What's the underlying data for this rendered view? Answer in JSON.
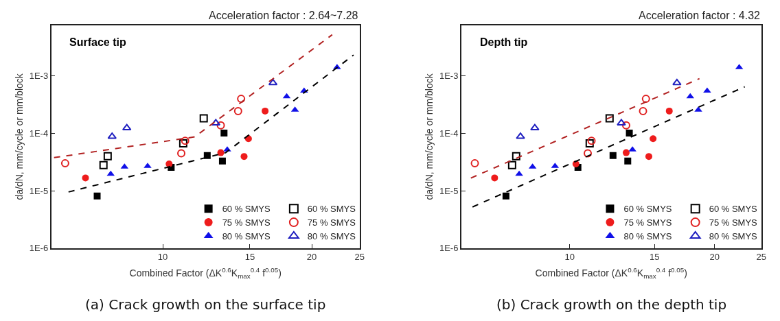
{
  "chart_data": [
    {
      "type": "scatter",
      "title": "Surface tip",
      "subtitle": "Acceleration factor : 2.64~7.28",
      "xlabel": "Combined Factor (ΔK$^{0.6}$K$_{max}$$^{0.4}$ f$^{0.05}$)",
      "ylabel": "da/dN, mm/cycle or mm/block",
      "annotations": [
        "(a) Crack growth on the surface tip"
      ],
      "log": "xy",
      "legend": "bottom right",
      "xlim": [
        5.95,
        25
      ],
      "ylim": [
        1e-06,
        0.0076
      ],
      "xticks": [
        10,
        15,
        20,
        25
      ],
      "yticks": [
        {
          "value": 1e-06,
          "label": "1E-6"
        },
        {
          "value": 1e-05,
          "label": "1E-5"
        },
        {
          "value": 0.0001,
          "label": "1E-4"
        },
        {
          "value": 0.001,
          "label": "1E-3"
        }
      ],
      "series": [
        {
          "name": "60 % SMYS",
          "color": "#000000",
          "marker": "square",
          "x": [
            7.37,
            10.4,
            12.3,
            13.2,
            13.3
          ],
          "values": [
            8.05e-06,
            2.56e-05,
            4.1e-05,
            3.3e-05,
            0.000101
          ]
        },
        {
          "name": "75 % SMYS",
          "color": "#ee1c1c",
          "marker": "circle",
          "x": [
            6.98,
            10.3,
            13.1,
            14.6,
            14.9,
            16.1
          ],
          "values": [
            1.67e-05,
            2.93e-05,
            4.6e-05,
            3.95e-05,
            8.05e-05,
            0.000245
          ]
        },
        {
          "name": "80 % SMYS",
          "color": "#1010e8",
          "marker": "triangle",
          "x": [
            7.85,
            8.37,
            9.32,
            13.5,
            17.8,
            18.5,
            19.3,
            22.5
          ],
          "values": [
            1.95e-05,
            2.6e-05,
            2.67e-05,
            5.2e-05,
            0.00044,
            0.000256,
            0.00055,
            0.00142
          ]
        },
        {
          "name": "60 % SMYS",
          "color": "#000000",
          "marker": "square-open",
          "x": [
            7.59,
            7.74,
            11.0,
            12.1
          ],
          "values": [
            2.8e-05,
            4e-05,
            6.7e-05,
            0.000183
          ]
        },
        {
          "name": "75 % SMYS",
          "color": "#e02020",
          "marker": "circle-open",
          "x": [
            6.35,
            10.9,
            11.1,
            13.1,
            14.2,
            14.4
          ],
          "values": [
            3e-05,
            4.5e-05,
            7.4e-05,
            0.000138,
            0.000245,
            0.0004
          ]
        },
        {
          "name": "80 % SMYS",
          "color": "#2020c0",
          "marker": "triangle-open",
          "x": [
            7.9,
            8.46,
            12.8,
            16.7
          ],
          "values": [
            8.8e-05,
            0.000124,
            0.000151,
            0.00076
          ]
        },
        {
          "type": "line",
          "color": "#b22222",
          "line_style": "dashed",
          "x": [
            6.03,
            11.6,
            22.0
          ],
          "values": [
            3.77e-05,
            8.67e-05,
            0.00526
          ]
        },
        {
          "type": "line",
          "color": "#000000",
          "line_style": "dashed",
          "x": [
            6.45,
            13.4,
            24.3
          ],
          "values": [
            9.5e-06,
            4.6e-05,
            0.00233
          ]
        }
      ]
    },
    {
      "type": "scatter",
      "title": "Depth tip",
      "subtitle": "Acceleration factor : 4.32",
      "xlabel": "Combined Factor (ΔK$^{0.6}$K$_{max}$$^{0.4}$ f$^{0.05}$)",
      "ylabel": "da/dN, mm/cycle or mm/block",
      "annotations": [
        "(b) Crack growth on the depth tip"
      ],
      "log": "xy",
      "legend": "bottom right",
      "xlim": [
        5.95,
        25
      ],
      "ylim": [
        1e-06,
        0.0076
      ],
      "xticks": [
        10,
        15,
        20,
        25
      ],
      "yticks": [
        {
          "value": 1e-06,
          "label": "1E-6"
        },
        {
          "value": 1e-05,
          "label": "1E-5"
        },
        {
          "value": 0.0001,
          "label": "1E-4"
        },
        {
          "value": 0.001,
          "label": "1E-3"
        }
      ],
      "series": [
        {
          "name": "60 % SMYS",
          "color": "#000000",
          "marker": "square",
          "x": [
            7.37,
            10.4,
            12.3,
            13.2,
            13.3
          ],
          "values": [
            8.05e-06,
            2.56e-05,
            4.1e-05,
            3.3e-05,
            0.000101
          ]
        },
        {
          "name": "75 % SMYS",
          "color": "#ee1c1c",
          "marker": "circle",
          "x": [
            6.98,
            10.3,
            13.1,
            14.6,
            14.9,
            16.1
          ],
          "values": [
            1.67e-05,
            2.93e-05,
            4.6e-05,
            3.95e-05,
            8.05e-05,
            0.000245
          ]
        },
        {
          "name": "80 % SMYS",
          "color": "#1010e8",
          "marker": "triangle",
          "x": [
            7.85,
            8.37,
            9.32,
            13.5,
            17.8,
            18.5,
            19.3,
            22.5
          ],
          "values": [
            1.95e-05,
            2.6e-05,
            2.67e-05,
            5.2e-05,
            0.00044,
            0.000256,
            0.00055,
            0.00142
          ]
        },
        {
          "name": "60 % SMYS",
          "color": "#000000",
          "marker": "square-open",
          "x": [
            7.59,
            7.74,
            11.0,
            12.1
          ],
          "values": [
            2.8e-05,
            4e-05,
            6.7e-05,
            0.000183
          ]
        },
        {
          "name": "75 % SMYS",
          "color": "#e02020",
          "marker": "circle-open",
          "x": [
            6.35,
            10.9,
            11.1,
            13.1,
            14.2,
            14.4
          ],
          "values": [
            3e-05,
            4.5e-05,
            7.4e-05,
            0.000138,
            0.000245,
            0.0004
          ]
        },
        {
          "name": "80 % SMYS",
          "color": "#2020c0",
          "marker": "triangle-open",
          "x": [
            7.9,
            8.46,
            12.8,
            16.7
          ],
          "values": [
            8.8e-05,
            0.000124,
            0.000151,
            0.00076
          ]
        },
        {
          "type": "line",
          "color": "#b22222",
          "line_style": "dashed",
          "x": [
            6.23,
            18.6
          ],
          "values": [
            1.66e-05,
            0.0009
          ]
        },
        {
          "type": "line",
          "color": "#000000",
          "line_style": "dashed",
          "x": [
            6.28,
            23.1
          ],
          "values": [
            5.2e-06,
            0.00065
          ]
        }
      ]
    }
  ]
}
